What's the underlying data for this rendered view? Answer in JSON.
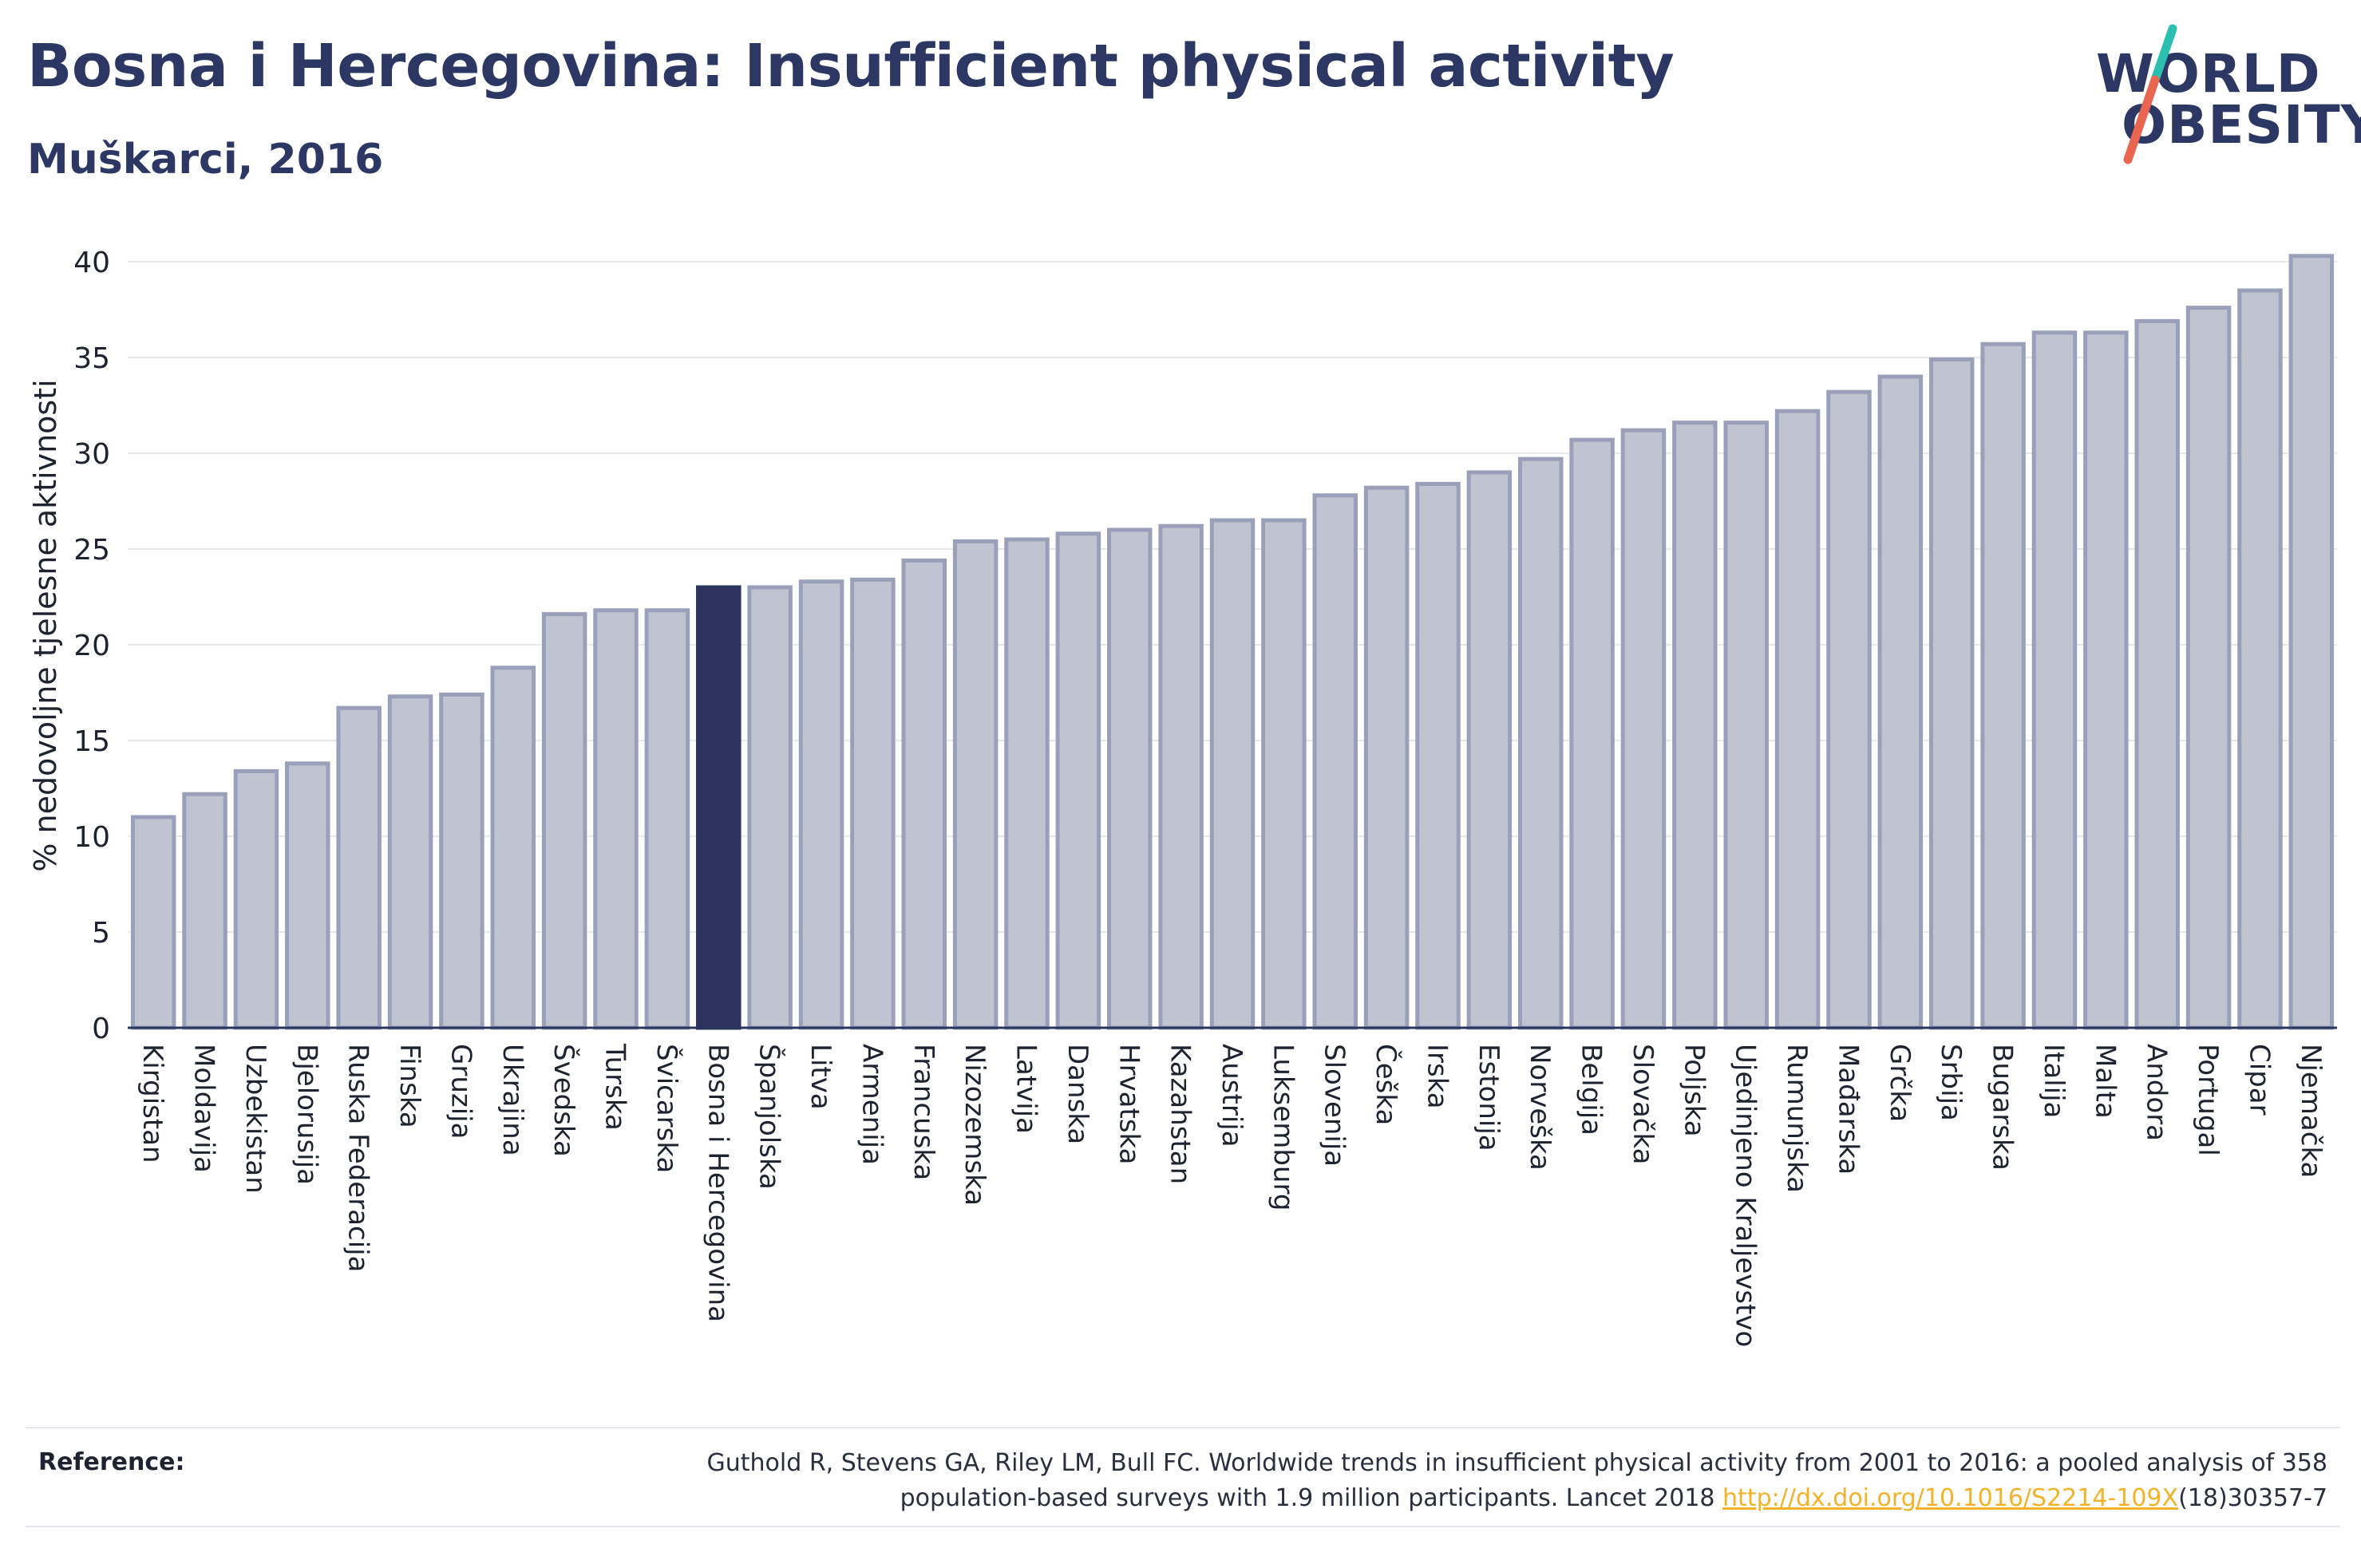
{
  "header": {
    "title": "Bosna i Hercegovina: Insufficient physical activity",
    "subtitle": "Muškarci, 2016"
  },
  "logo": {
    "line1": "WORLD",
    "line2": "OBESITY",
    "slash_colors": [
      "#2bbfb0",
      "#e8654f"
    ]
  },
  "chart_data": {
    "type": "bar",
    "ylabel": "% nedovoljne tjelesne aktivnosti",
    "ylim": [
      0,
      42
    ],
    "yticks": [
      0,
      5,
      10,
      15,
      20,
      25,
      30,
      35,
      40
    ],
    "grid": true,
    "highlight_category": "Bosna i Hercegovina",
    "colors": {
      "bar_fill": "#c0c4d1",
      "bar_stroke": "#9aa0b9",
      "highlight": "#2b355e",
      "axis": "#2b355e",
      "grid": "#e8e9ee"
    },
    "categories": [
      "Kirgistan",
      "Moldavija",
      "Uzbekistan",
      "Bjelorusija",
      "Ruska Federacija",
      "Finska",
      "Gruzija",
      "Ukrajina",
      "Švedska",
      "Turska",
      "Švicarska",
      "Bosna i Hercegovina",
      "Španjolska",
      "Litva",
      "Armenija",
      "Francuska",
      "Nizozemska",
      "Latvija",
      "Danska",
      "Hrvatska",
      "Kazahstan",
      "Austrija",
      "Luksemburg",
      "Slovenija",
      "Češka",
      "Irska",
      "Estonija",
      "Norveška",
      "Belgija",
      "Slovačka",
      "Poljska",
      "Ujedinjeno Kraljevstvo",
      "Rumunjska",
      "Mađarska",
      "Grčka",
      "Srbija",
      "Bugarska",
      "Italija",
      "Malta",
      "Andora",
      "Portugal",
      "Cipar",
      "Njemačka"
    ],
    "values": [
      11.0,
      12.2,
      13.4,
      13.8,
      16.7,
      17.3,
      17.4,
      18.8,
      21.6,
      21.8,
      21.8,
      23.0,
      23.0,
      23.3,
      23.4,
      24.4,
      25.4,
      25.5,
      25.8,
      26.0,
      26.2,
      26.5,
      26.5,
      27.8,
      28.2,
      28.4,
      29.0,
      29.7,
      30.7,
      31.2,
      31.6,
      31.6,
      32.2,
      33.2,
      34.0,
      34.9,
      35.7,
      36.3,
      36.3,
      36.9,
      37.6,
      38.5,
      40.3
    ]
  },
  "reference": {
    "label": "Reference:",
    "line1": "Guthold R, Stevens GA, Riley LM, Bull FC. Worldwide trends in insufficient physical activity from 2001 to 2016: a pooled analysis of 358",
    "line2_prefix": "population-based surveys with 1.9 million participants. Lancet 2018 ",
    "link": "http://dx.doi.org/10.1016/S2214-109X",
    "line2_suffix": "(18)30357-7"
  }
}
